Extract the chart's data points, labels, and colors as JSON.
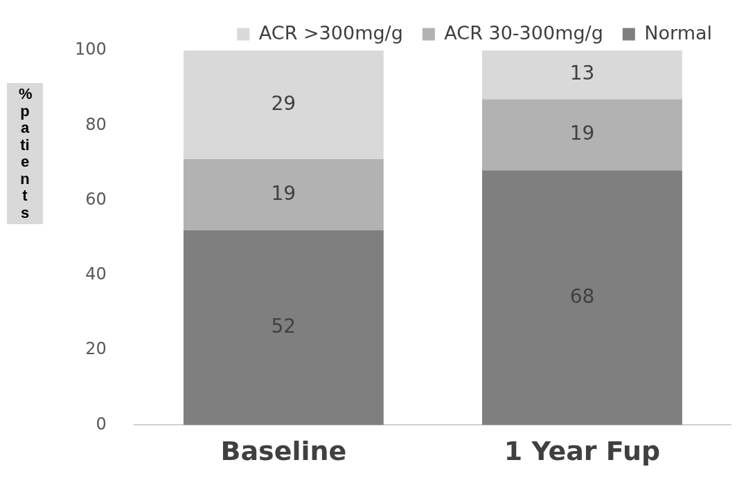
{
  "chart_data": {
    "type": "bar",
    "stacked": true,
    "ylabel": "%patients",
    "categories": [
      "Baseline",
      "1 Year Fup"
    ],
    "series": [
      {
        "name": "Normal",
        "color": "#7f7f7f",
        "values": [
          52,
          68
        ]
      },
      {
        "name": "ACR 30-300mg/g",
        "color": "#b2b2b2",
        "values": [
          19,
          19
        ]
      },
      {
        "name": "ACR >300mg/g",
        "color": "#d9d9d9",
        "values": [
          29,
          13
        ]
      }
    ],
    "ylim": [
      0,
      100
    ],
    "yticks": [
      0,
      20,
      40,
      60,
      80,
      100
    ],
    "grid": false,
    "legend": "top right",
    "data_labels": true
  }
}
